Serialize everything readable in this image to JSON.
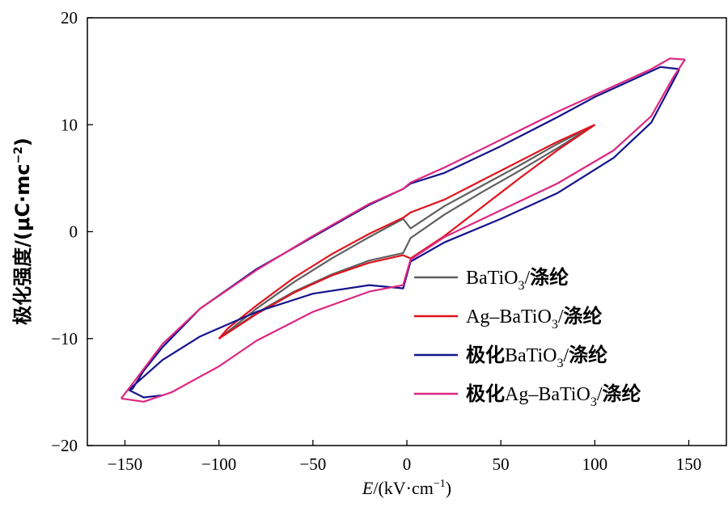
{
  "chart_data": {
    "type": "line",
    "xlabel_italic": "E",
    "xlabel_rest": "/(kV·cm",
    "xlabel_sup": "−1",
    "xlabel_close": ")",
    "ylabel_main": "极化强度/(μC·mc",
    "ylabel_sup": "−2",
    "ylabel_close": ")",
    "xlim": [
      -170,
      170
    ],
    "ylim": [
      -20,
      20
    ],
    "x_ticks": [
      -150,
      -100,
      -50,
      0,
      50,
      100,
      150
    ],
    "x_tick_labels": [
      "−150",
      "−100",
      "−50",
      "0",
      "50",
      "100",
      "150"
    ],
    "y_ticks": [
      -20,
      -10,
      0,
      10,
      20
    ],
    "y_tick_labels": [
      "−20",
      "−10",
      "0",
      "10",
      "20"
    ],
    "grid": false,
    "legend_position": "lower-right",
    "series": [
      {
        "name": "BaTiO3/涤纶",
        "legend": {
          "pre": "",
          "main": "BaTiO",
          "sub": "3",
          "post": "/",
          "cjk": "涤纶"
        },
        "color": "#606060",
        "upper": [
          [
            -100,
            -10.0
          ],
          [
            -80,
            -7.6
          ],
          [
            -60,
            -5.6
          ],
          [
            -40,
            -4.0
          ],
          [
            -20,
            -2.7
          ],
          [
            -2,
            -2.0
          ],
          [
            2,
            -0.6
          ],
          [
            20,
            1.6
          ],
          [
            40,
            3.7
          ],
          [
            60,
            5.7
          ],
          [
            80,
            7.8
          ],
          [
            100,
            10.0
          ]
        ],
        "lower": [
          [
            100,
            10.0
          ],
          [
            80,
            8.2
          ],
          [
            60,
            6.2
          ],
          [
            40,
            4.3
          ],
          [
            20,
            2.4
          ],
          [
            2,
            0.3
          ],
          [
            -2,
            1.2
          ],
          [
            -20,
            -0.5
          ],
          [
            -40,
            -2.5
          ],
          [
            -60,
            -4.7
          ],
          [
            -80,
            -7.2
          ],
          [
            -100,
            -10.0
          ]
        ]
      },
      {
        "name": "Ag–BaTiO3/涤纶",
        "legend": {
          "pre": "",
          "main": "Ag–BaTiO",
          "sub": "3",
          "post": "/",
          "cjk": "涤纶"
        },
        "color": "#e0141e",
        "upper": [
          [
            -100,
            -10.0
          ],
          [
            -80,
            -7.7
          ],
          [
            -60,
            -5.7
          ],
          [
            -40,
            -4.1
          ],
          [
            -20,
            -2.9
          ],
          [
            -2,
            -2.2
          ],
          [
            2,
            -2.5
          ],
          [
            20,
            -0.4
          ],
          [
            40,
            2.3
          ],
          [
            60,
            5.0
          ],
          [
            80,
            7.6
          ],
          [
            100,
            10.0
          ]
        ],
        "lower": [
          [
            100,
            10.0
          ],
          [
            80,
            8.4
          ],
          [
            60,
            6.6
          ],
          [
            40,
            4.8
          ],
          [
            20,
            3.0
          ],
          [
            2,
            1.8
          ],
          [
            -2,
            1.3
          ],
          [
            -20,
            -0.2
          ],
          [
            -40,
            -2.1
          ],
          [
            -60,
            -4.3
          ],
          [
            -80,
            -6.9
          ],
          [
            -95,
            -9.0
          ],
          [
            -100,
            -10.0
          ]
        ]
      },
      {
        "name": "极化BaTiO3/涤纶",
        "legend": {
          "pre": "极化",
          "main": "BaTiO",
          "sub": "3",
          "post": "/",
          "cjk": "涤纶"
        },
        "color": "#14148c",
        "upper": [
          [
            -148,
            -14.8
          ],
          [
            -130,
            -12.0
          ],
          [
            -110,
            -9.8
          ],
          [
            -80,
            -7.5
          ],
          [
            -50,
            -5.8
          ],
          [
            -20,
            -5.0
          ],
          [
            -2,
            -5.3
          ],
          [
            2,
            -2.8
          ],
          [
            20,
            -1.0
          ],
          [
            50,
            1.2
          ],
          [
            80,
            3.6
          ],
          [
            110,
            6.9
          ],
          [
            130,
            10.2
          ],
          [
            143,
            14.5
          ],
          [
            145,
            15.2
          ]
        ],
        "lower": [
          [
            145,
            15.2
          ],
          [
            135,
            15.4
          ],
          [
            120,
            14.2
          ],
          [
            100,
            12.6
          ],
          [
            80,
            10.7
          ],
          [
            50,
            8.0
          ],
          [
            20,
            5.5
          ],
          [
            2,
            4.5
          ],
          [
            -2,
            4.0
          ],
          [
            -20,
            2.5
          ],
          [
            -50,
            -0.5
          ],
          [
            -80,
            -3.5
          ],
          [
            -110,
            -7.2
          ],
          [
            -130,
            -10.8
          ],
          [
            -140,
            -13.0
          ],
          [
            -146,
            -14.7
          ],
          [
            -148,
            -14.8
          ],
          [
            -140,
            -15.5
          ],
          [
            -130,
            -15.3
          ]
        ]
      },
      {
        "name": "极化Ag–BaTiO3/涤纶",
        "legend": {
          "pre": "极化",
          "main": "Ag–BaTiO",
          "sub": "3",
          "post": "/",
          "cjk": "涤纶"
        },
        "color": "#dc2882",
        "upper": [
          [
            -152,
            -15.6
          ],
          [
            -140,
            -15.9
          ],
          [
            -125,
            -15.0
          ],
          [
            -100,
            -12.6
          ],
          [
            -80,
            -10.2
          ],
          [
            -50,
            -7.5
          ],
          [
            -20,
            -5.6
          ],
          [
            -2,
            -5.0
          ],
          [
            2,
            -2.6
          ],
          [
            20,
            -0.5
          ],
          [
            50,
            2.0
          ],
          [
            80,
            4.5
          ],
          [
            110,
            7.6
          ],
          [
            130,
            10.8
          ],
          [
            142,
            14.5
          ],
          [
            148,
            16.1
          ]
        ],
        "lower": [
          [
            148,
            16.1
          ],
          [
            140,
            16.2
          ],
          [
            130,
            15.2
          ],
          [
            110,
            13.6
          ],
          [
            80,
            11.2
          ],
          [
            50,
            8.6
          ],
          [
            20,
            6.0
          ],
          [
            2,
            4.6
          ],
          [
            -2,
            4.0
          ],
          [
            -20,
            2.6
          ],
          [
            -50,
            -0.4
          ],
          [
            -80,
            -3.6
          ],
          [
            -110,
            -7.2
          ],
          [
            -130,
            -10.5
          ],
          [
            -145,
            -14.0
          ],
          [
            -152,
            -15.6
          ]
        ]
      }
    ]
  }
}
